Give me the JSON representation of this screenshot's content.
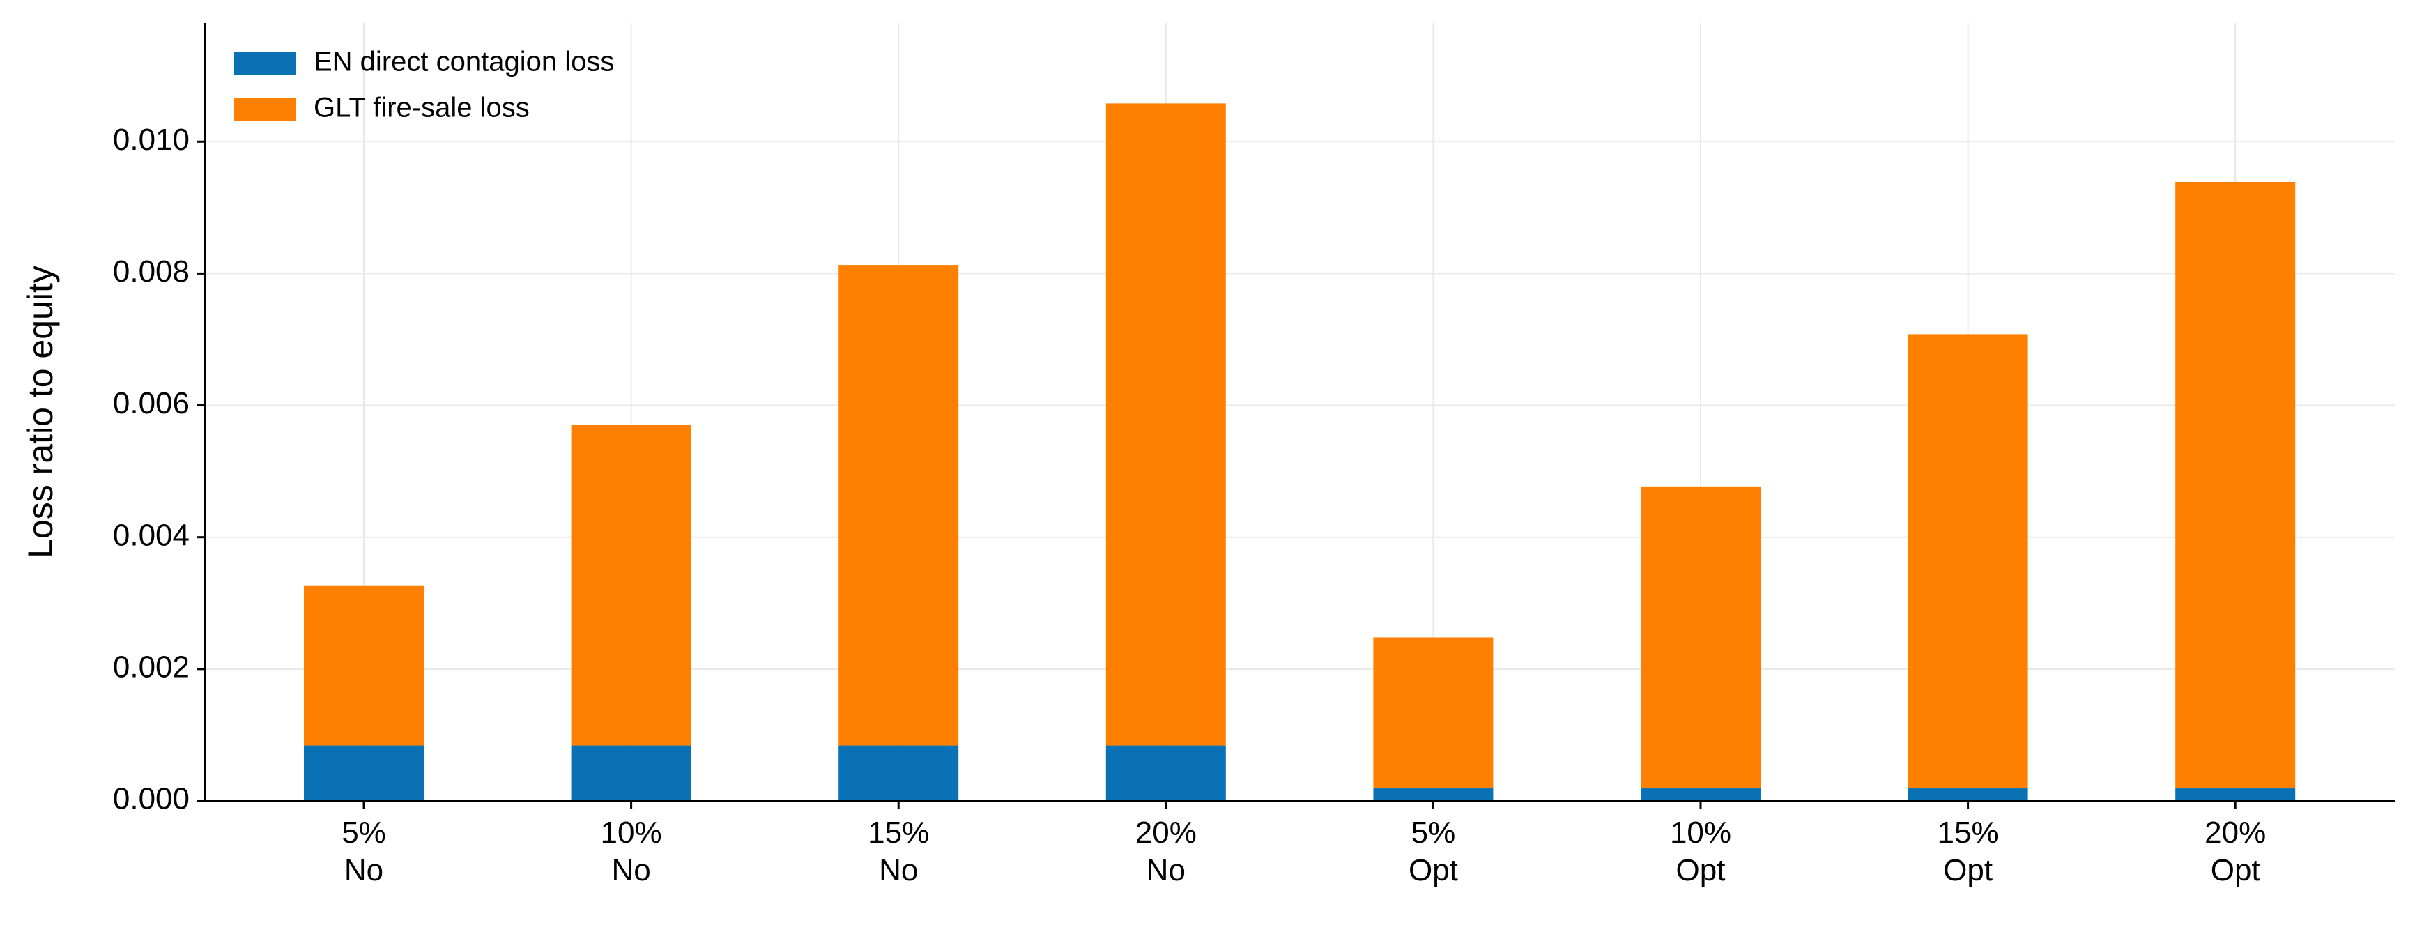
{
  "chart_data": {
    "type": "stacked-bar",
    "y_label": "Loss ratio to equity",
    "categories": [
      [
        "5%",
        "No"
      ],
      [
        "10%",
        "No"
      ],
      [
        "15%",
        "No"
      ],
      [
        "20%",
        "No"
      ],
      [
        "5%",
        "Opt"
      ],
      [
        "10%",
        "Opt"
      ],
      [
        "15%",
        "Opt"
      ],
      [
        "20%",
        "Opt"
      ]
    ],
    "series": [
      {
        "name": "EN direct contagion loss",
        "color": "#0a72b4",
        "values": [
          0.00084,
          0.00084,
          0.00084,
          0.00084,
          0.00019,
          0.00019,
          0.00019,
          0.00019
        ]
      },
      {
        "name": "GLT fire-sale loss",
        "color": "#ff8000",
        "values": [
          0.00243,
          0.00486,
          0.00729,
          0.00974,
          0.00229,
          0.00458,
          0.00689,
          0.0092
        ]
      }
    ],
    "ylim": [
      0,
      0.0118
    ],
    "yticks": [
      {
        "value": 0,
        "label": "0.000"
      },
      {
        "value": 0.002,
        "label": "0.002"
      },
      {
        "value": 0.004,
        "label": "0.004"
      },
      {
        "value": 0.006,
        "label": "0.006"
      },
      {
        "value": 0.008,
        "label": "0.008"
      },
      {
        "value": 0.01,
        "label": "0.010"
      }
    ],
    "grid": true,
    "legend": "upper-left"
  }
}
